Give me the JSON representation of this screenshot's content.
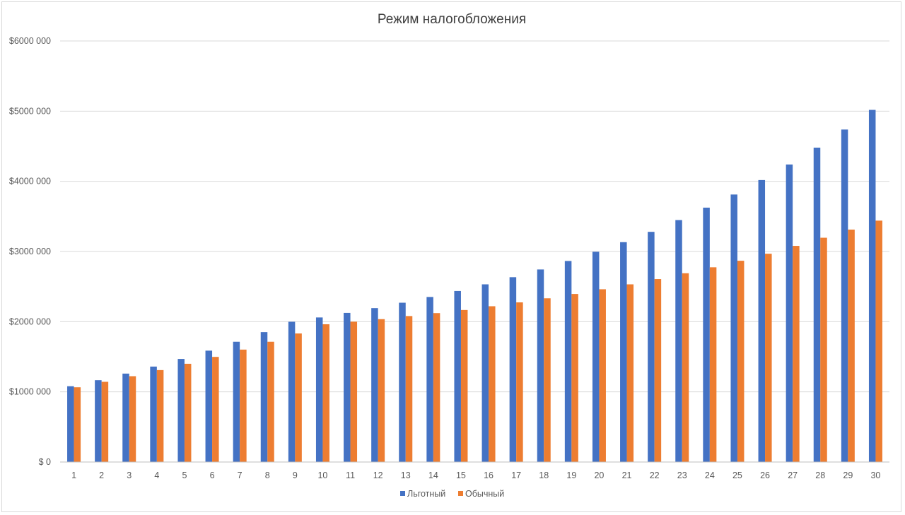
{
  "chart_data": {
    "type": "bar",
    "title": "Режим налогобложения",
    "xlabel": "",
    "ylabel": "",
    "ylim": [
      0,
      6000000
    ],
    "yticks": [
      0,
      1000000,
      2000000,
      3000000,
      4000000,
      5000000,
      6000000
    ],
    "ytick_labels": [
      "$ 0",
      "$1000 000",
      "$2000 000",
      "$3000 000",
      "$4000 000",
      "$5000 000",
      "$6000 000"
    ],
    "grid": true,
    "legend_position": "bottom-center",
    "categories": [
      "1",
      "2",
      "3",
      "4",
      "5",
      "6",
      "7",
      "8",
      "9",
      "10",
      "11",
      "12",
      "13",
      "14",
      "15",
      "16",
      "17",
      "18",
      "19",
      "20",
      "21",
      "22",
      "23",
      "24",
      "25",
      "26",
      "27",
      "28",
      "29",
      "30"
    ],
    "series": [
      {
        "name": "Льготный",
        "color": "#4472c4",
        "values": [
          1080000,
          1166000,
          1260000,
          1360000,
          1469000,
          1587000,
          1714000,
          1851000,
          1999000,
          2060000,
          2125000,
          2193000,
          2270000,
          2352000,
          2437000,
          2532000,
          2634000,
          2744000,
          2865000,
          2996000,
          3133000,
          3280000,
          3448000,
          3625000,
          3812000,
          4018000,
          4240000,
          4480000,
          4738000,
          5018000
        ]
      },
      {
        "name": "Обычный",
        "color": "#ed7d31",
        "values": [
          1065000,
          1143000,
          1223000,
          1310000,
          1400000,
          1498000,
          1602000,
          1714000,
          1832000,
          1963000,
          2000000,
          2036000,
          2080000,
          2122000,
          2166000,
          2220000,
          2275000,
          2333000,
          2395000,
          2462000,
          2532000,
          2607000,
          2690000,
          2775000,
          2868000,
          2968000,
          3080000,
          3196000,
          3312000,
          3440000
        ]
      }
    ]
  }
}
